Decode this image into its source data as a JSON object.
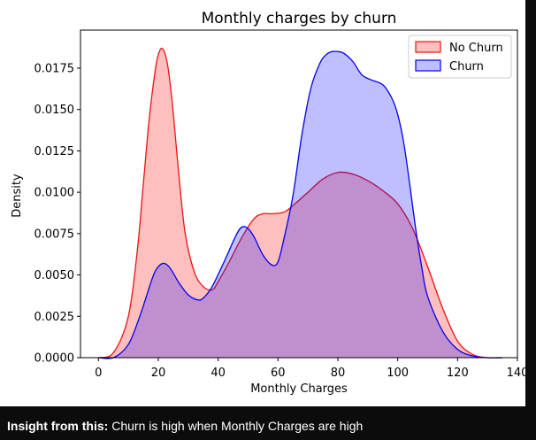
{
  "chart_data": {
    "type": "area",
    "title": "Monthly charges by churn",
    "xlabel": "Monthly Charges",
    "ylabel": "Density",
    "xlim": [
      -6,
      140
    ],
    "ylim": [
      0,
      0.0198
    ],
    "xticks": [
      "0",
      "20",
      "40",
      "60",
      "80",
      "100",
      "120",
      "140"
    ],
    "yticks": [
      "0.0000",
      "0.0025",
      "0.0050",
      "0.0075",
      "0.0100",
      "0.0125",
      "0.0150",
      "0.0175"
    ],
    "grid": false,
    "legend_position": "top-right",
    "series": [
      {
        "name": "No Churn",
        "line_color": "#ee1111",
        "fill_color": "#ff0000",
        "fill_opacity": 0.25,
        "x": [
          0,
          5,
          10,
          13,
          15,
          17,
          19,
          20,
          21,
          22,
          23,
          24,
          25,
          27,
          29,
          32,
          35,
          38,
          40,
          44,
          48,
          52,
          55,
          58,
          62,
          65,
          70,
          75,
          80,
          85,
          90,
          95,
          100,
          105,
          110,
          115,
          120,
          125,
          130,
          135
        ],
        "y": [
          0.0,
          0.0003,
          0.0025,
          0.0065,
          0.0105,
          0.0145,
          0.0174,
          0.0183,
          0.0187,
          0.0185,
          0.0178,
          0.0165,
          0.0148,
          0.0108,
          0.0075,
          0.0052,
          0.0043,
          0.0041,
          0.0046,
          0.0059,
          0.0073,
          0.0084,
          0.0087,
          0.0087,
          0.0088,
          0.0092,
          0.01,
          0.0108,
          0.0112,
          0.0111,
          0.0107,
          0.0101,
          0.0093,
          0.0078,
          0.0055,
          0.003,
          0.001,
          0.0002,
          0.0,
          0.0
        ]
      },
      {
        "name": "Churn",
        "line_color": "#0000ee",
        "fill_color": "#0000ff",
        "fill_opacity": 0.25,
        "x": [
          0,
          5,
          10,
          14,
          18,
          20,
          22,
          24,
          27,
          30,
          33,
          35,
          38,
          42,
          46,
          48,
          50,
          52,
          55,
          58,
          60,
          62,
          65,
          68,
          71,
          74,
          76,
          78,
          80,
          82,
          85,
          88,
          91,
          95,
          98,
          100,
          102,
          104,
          106,
          108,
          110,
          115,
          120,
          125,
          130,
          135
        ],
        "y": [
          0.0,
          0.0,
          0.0008,
          0.0026,
          0.0048,
          0.0055,
          0.0057,
          0.0054,
          0.0045,
          0.0038,
          0.0035,
          0.0036,
          0.0043,
          0.0058,
          0.0074,
          0.0079,
          0.0078,
          0.0073,
          0.0062,
          0.0056,
          0.0058,
          0.0072,
          0.0098,
          0.0135,
          0.0163,
          0.0178,
          0.0183,
          0.0185,
          0.0185,
          0.0184,
          0.0179,
          0.0171,
          0.0168,
          0.0165,
          0.0157,
          0.0147,
          0.013,
          0.0105,
          0.0078,
          0.0055,
          0.0037,
          0.0016,
          0.0005,
          0.0001,
          0.0,
          0.0
        ]
      }
    ]
  },
  "insight": {
    "label": "Insight from this:",
    "text": " Churn is high when Monthly Charges are high"
  }
}
